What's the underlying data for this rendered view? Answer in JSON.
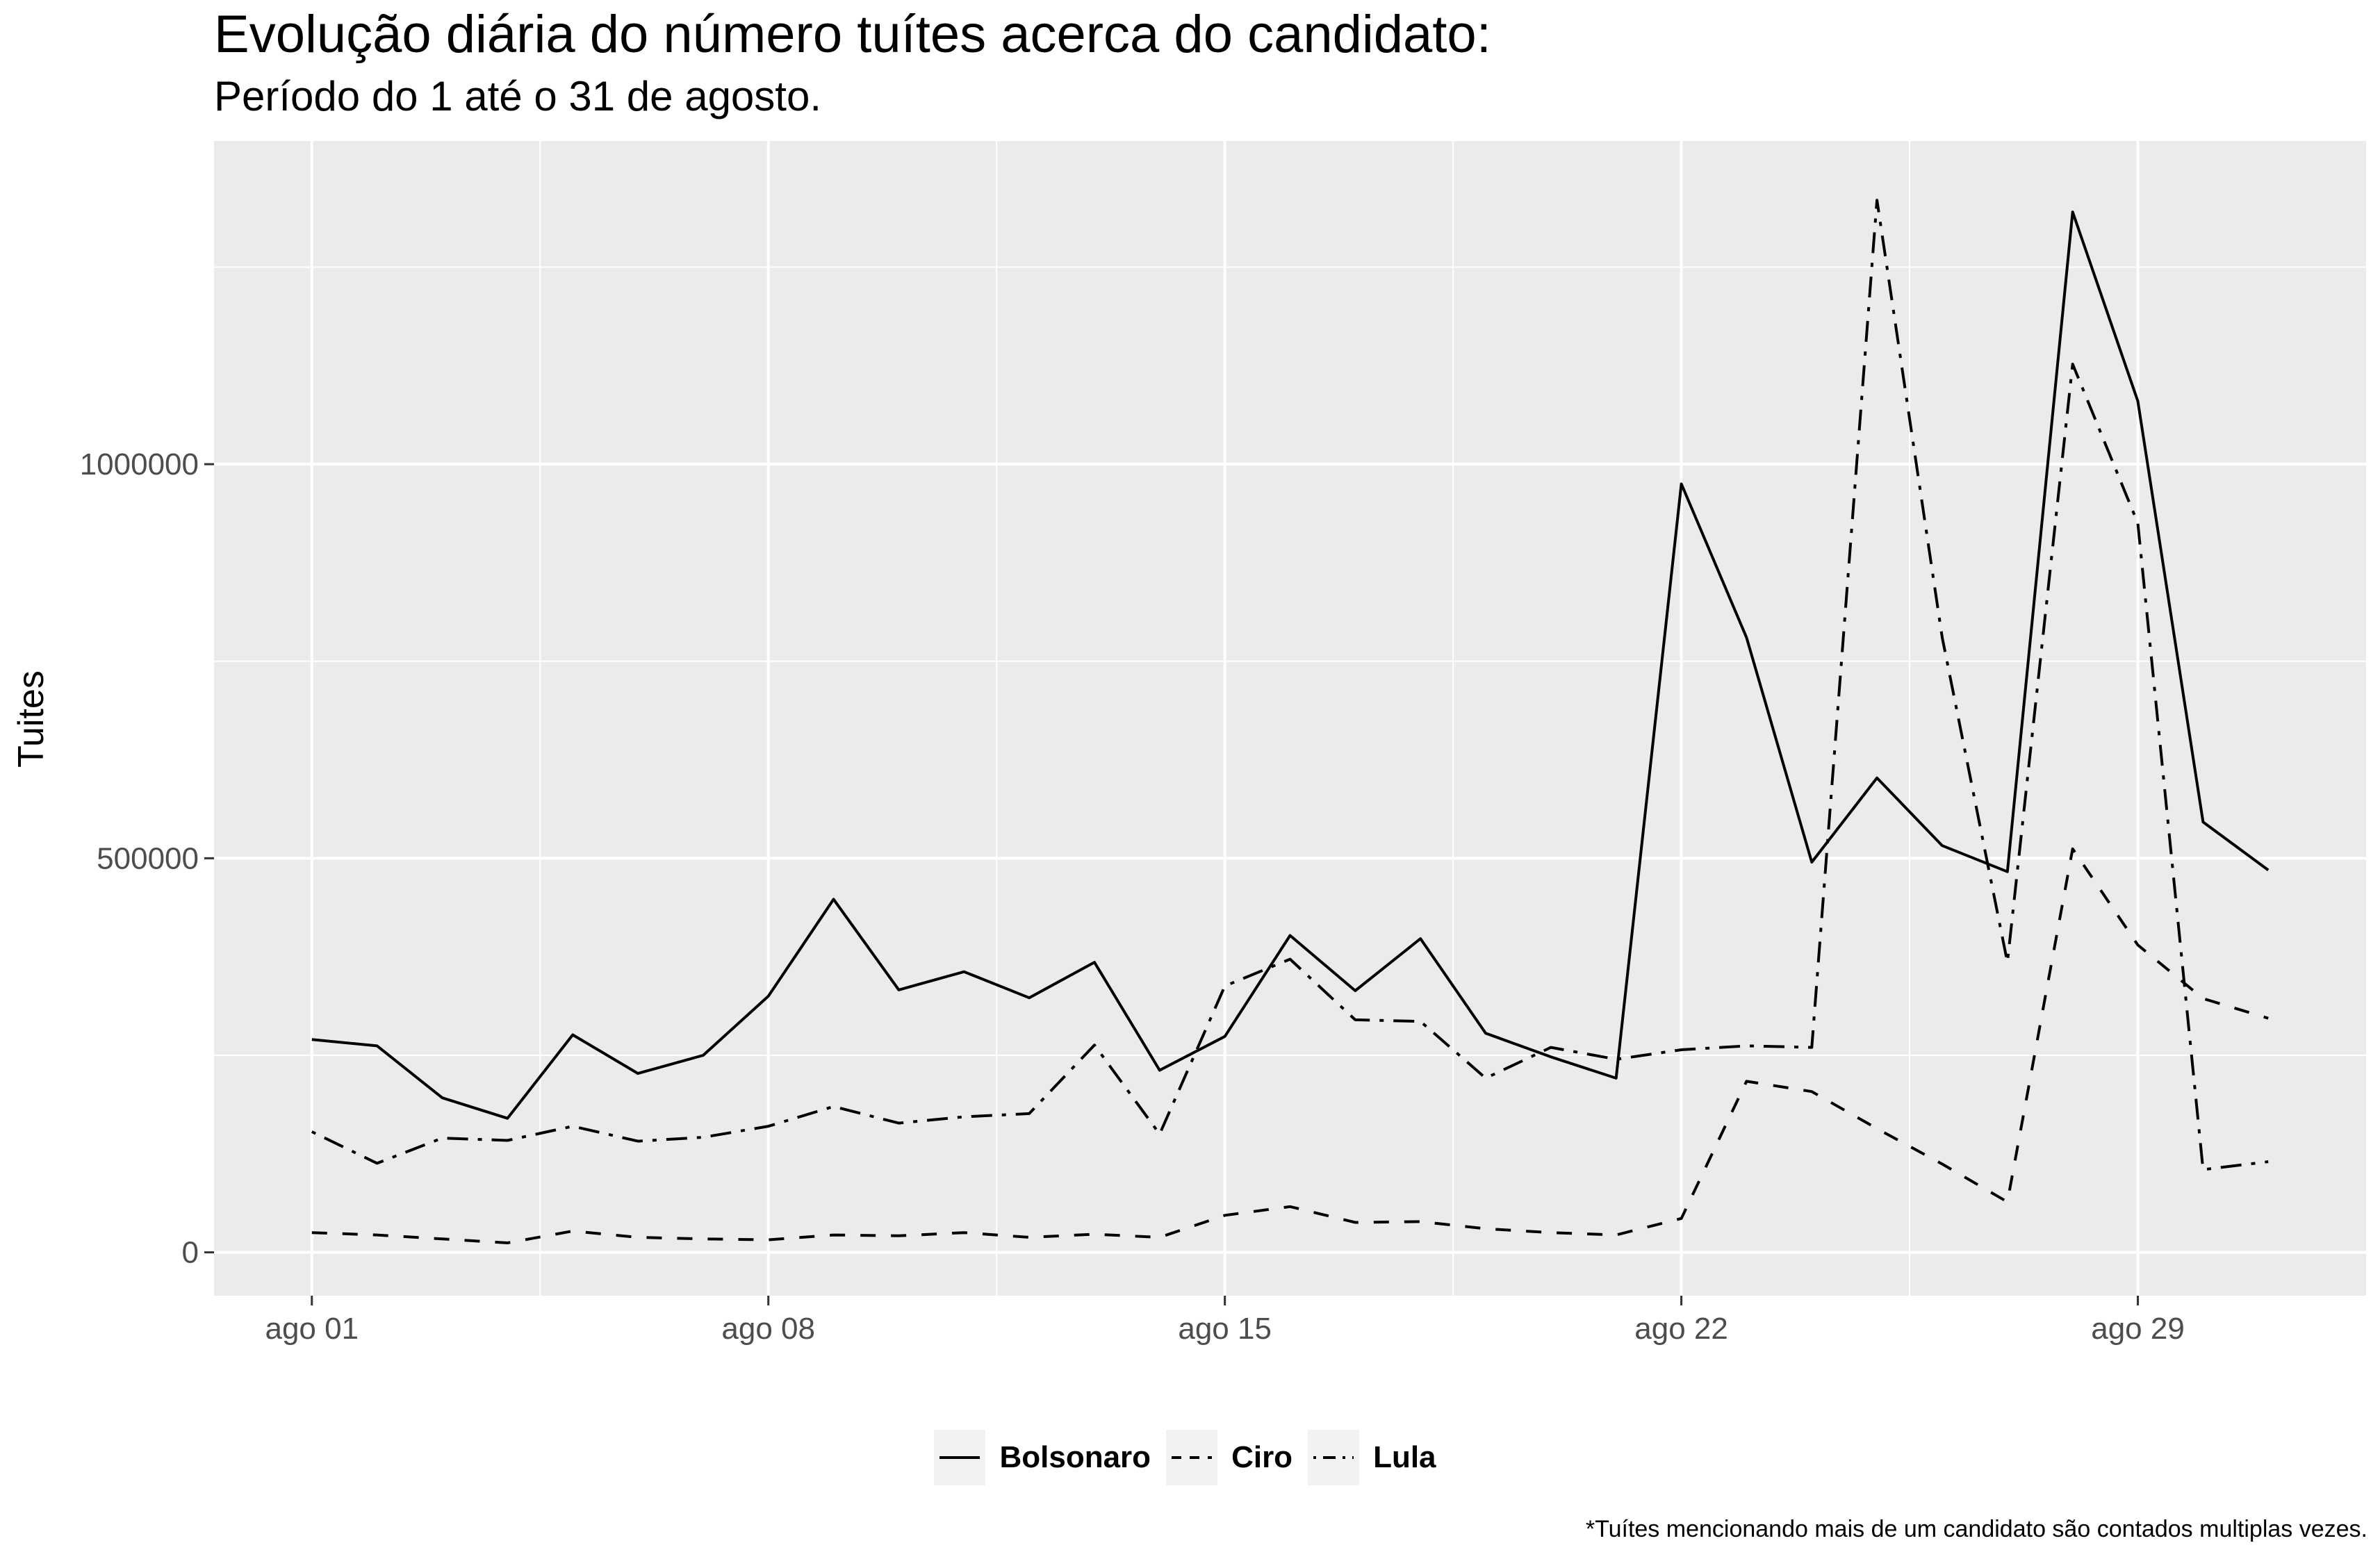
{
  "title": "Evolução diária do número tuítes acerca do candidato:",
  "subtitle": "Período do 1 até o 31 de agosto.",
  "caption": "*Tuítes mencionando mais de um candidato são contados multiplas vezes.",
  "colors": {
    "panel": "#ebebeb",
    "grid": "#ffffff",
    "line": "#000000",
    "tick_text": "#4d4d4d",
    "legend_key_bg": "#f2f2f2"
  },
  "chart_data": {
    "type": "line",
    "xlabel": "",
    "ylabel": "Tuites",
    "x_unit": "day of August",
    "x": [
      1,
      2,
      3,
      4,
      5,
      6,
      7,
      8,
      9,
      10,
      11,
      12,
      13,
      14,
      15,
      16,
      17,
      18,
      19,
      20,
      21,
      22,
      23,
      24,
      25,
      26,
      27,
      28,
      29,
      30,
      31
    ],
    "xlim": [
      -0.5,
      32.5
    ],
    "ylim": [
      -55000,
      1410000
    ],
    "x_ticks": [
      1,
      8,
      15,
      22,
      29
    ],
    "x_tick_labels": [
      "ago 01",
      "ago 08",
      "ago 15",
      "ago 22",
      "ago 29"
    ],
    "y_ticks": [
      0,
      500000,
      1000000
    ],
    "y_tick_labels": [
      "0",
      "500000",
      "1000000"
    ],
    "grid": true,
    "legend_position": "bottom",
    "series": [
      {
        "name": "Bolsonaro",
        "linetype": "solid",
        "values": [
          270000,
          262000,
          196000,
          170000,
          276000,
          227000,
          250000,
          325000,
          448000,
          333000,
          356000,
          323000,
          368000,
          231000,
          274000,
          402000,
          332000,
          398000,
          278000,
          248000,
          221000,
          975000,
          780000,
          495000,
          602000,
          516000,
          483000,
          1320000,
          1080000,
          546000,
          485000
        ]
      },
      {
        "name": "Ciro",
        "linetype": "dashed",
        "values": [
          25000,
          22000,
          17000,
          12000,
          27000,
          19000,
          17000,
          16000,
          22000,
          21000,
          25000,
          19000,
          23000,
          19000,
          47000,
          58000,
          38000,
          39000,
          30000,
          25000,
          22000,
          43000,
          217000,
          204000,
          157000,
          112000,
          64000,
          512000,
          390000,
          322000,
          297000
        ]
      },
      {
        "name": "Lula",
        "linetype": "dotdash",
        "values": [
          153000,
          113000,
          145000,
          142000,
          160000,
          141000,
          146000,
          160000,
          185000,
          164000,
          172000,
          176000,
          263000,
          150000,
          338000,
          372000,
          295000,
          293000,
          221000,
          260000,
          245000,
          257000,
          262000,
          260000,
          1335000,
          780000,
          368000,
          1127000,
          925000,
          105000,
          115000
        ]
      }
    ]
  }
}
